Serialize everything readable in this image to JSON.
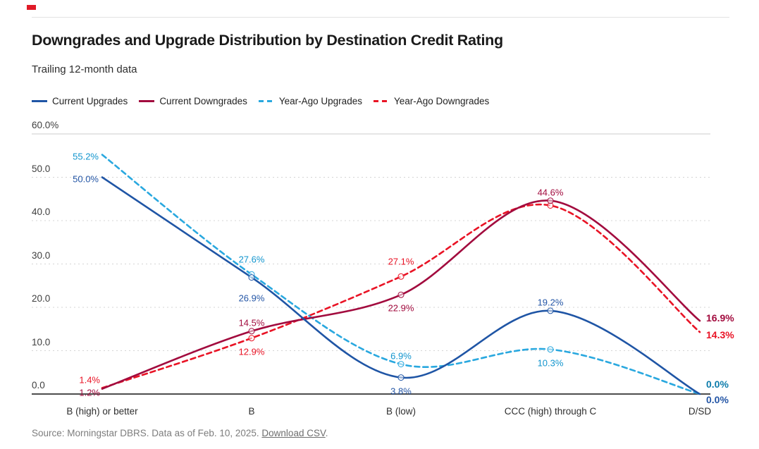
{
  "page": {
    "title": "Downgrades and Upgrade Distribution by Destination Credit Rating",
    "subtitle": "Trailing 12-month data",
    "source_prefix": "Source: Morningstar DBRS. Data as of Feb. 10, 2025. ",
    "source_link": "Download CSV",
    "source_suffix": ".",
    "accent_color": "#e01a27"
  },
  "legend": [
    {
      "label": "Current Upgrades",
      "color": "#1f55a5",
      "dashed": false
    },
    {
      "label": "Current Downgrades",
      "color": "#a20b3e",
      "dashed": false
    },
    {
      "label": "Year-Ago Upgrades",
      "color": "#29a8df",
      "dashed": true
    },
    {
      "label": "Year-Ago Downgrades",
      "color": "#e91325",
      "dashed": true
    }
  ],
  "chart_data": {
    "type": "line",
    "title": "Downgrades and Upgrade Distribution by Destination Credit Rating",
    "subtitle": "Trailing 12-month data",
    "categories": [
      "B (high) or better",
      "B",
      "B (low)",
      "CCC (high) through C",
      "D/SD"
    ],
    "y_axis": {
      "min": 0,
      "max": 60,
      "tick_step": 10,
      "tick_labels": [
        "0.0",
        "10.0",
        "20.0",
        "30.0",
        "40.0",
        "50.0",
        "60.0%"
      ]
    },
    "grid": "horizontal-dotted",
    "legend_position": "top",
    "series": [
      {
        "name": "Year-Ago Downgrades",
        "color": "#e91325",
        "dashed": true,
        "values": [
          1.4,
          12.9,
          27.1,
          43.5,
          14.3
        ],
        "labels": [
          "1.4%",
          "12.9%",
          "27.1%",
          null,
          "14.3%"
        ],
        "label_pos": [
          "left-above",
          "below",
          "above-far",
          "none",
          "right-down"
        ],
        "label_color": "#e91325",
        "end_label_color": "#e91325"
      },
      {
        "name": "Year-Ago Upgrades",
        "color": "#29a8df",
        "dashed": true,
        "values": [
          55.2,
          27.6,
          6.9,
          10.3,
          0.0
        ],
        "labels": [
          "55.2%",
          "27.6%",
          "6.9%",
          "10.3%",
          "0.0%"
        ],
        "label_pos": [
          "left",
          "above-far",
          "above",
          "below",
          "right-above"
        ],
        "label_color": "#1295ce",
        "end_label_color": "#0c7cab"
      },
      {
        "name": "Current Downgrades",
        "color": "#a20b3e",
        "dashed": false,
        "values": [
          1.2,
          14.5,
          22.9,
          44.6,
          16.9
        ],
        "labels": [
          "1.2%",
          "14.5%",
          "22.9%",
          "44.6%",
          "16.9%"
        ],
        "label_pos": [
          "left-below",
          "above",
          "below",
          "above",
          "right"
        ],
        "label_color": "#a20b3e",
        "end_label_color": "#a20b3e"
      },
      {
        "name": "Current Upgrades",
        "color": "#1f55a5",
        "dashed": false,
        "values": [
          50.0,
          26.9,
          3.8,
          19.2,
          0.0
        ],
        "labels": [
          "50.0%",
          "26.9%",
          "3.8%",
          "19.2%",
          "0.0%"
        ],
        "label_pos": [
          "left",
          "below-far",
          "below",
          "above",
          "right-below"
        ],
        "label_color": "#2456a6",
        "end_label_color": "#2456a6"
      }
    ]
  }
}
